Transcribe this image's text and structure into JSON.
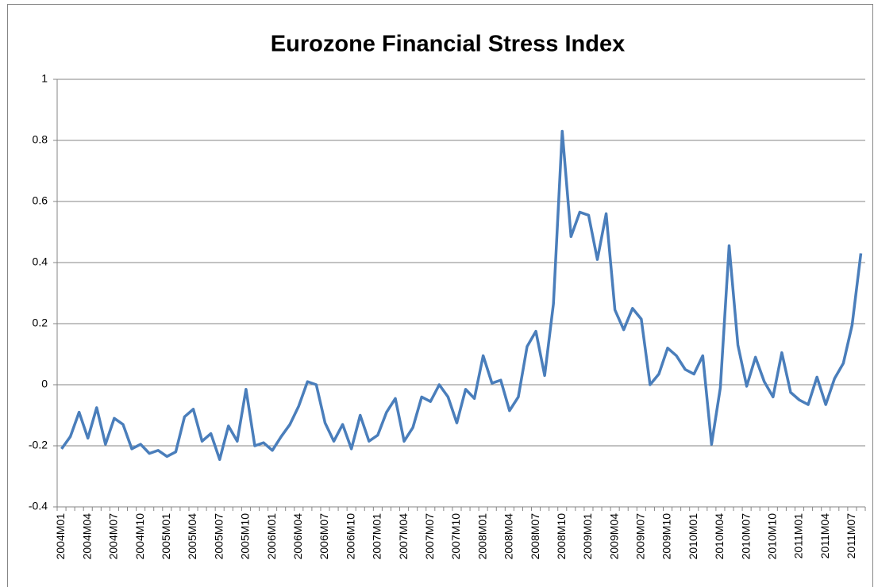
{
  "chart_data": {
    "type": "line",
    "title": "Eurozone Financial Stress Index",
    "categories": [
      "2004M01",
      null,
      null,
      "2004M04",
      null,
      null,
      "2004M07",
      null,
      null,
      "2004M10",
      null,
      null,
      "2005M01",
      null,
      null,
      "2005M04",
      null,
      null,
      "2005M07",
      null,
      null,
      "2005M10",
      null,
      null,
      "2006M01",
      null,
      null,
      "2006M04",
      null,
      null,
      "2006M07",
      null,
      null,
      "2006M10",
      null,
      null,
      "2007M01",
      null,
      null,
      "2007M04",
      null,
      null,
      "2007M07",
      null,
      null,
      "2007M10",
      null,
      null,
      "2008M01",
      null,
      null,
      "2008M04",
      null,
      null,
      "2008M07",
      null,
      null,
      "2008M10",
      null,
      null,
      "2009M01",
      null,
      null,
      "2009M04",
      null,
      null,
      "2009M07",
      null,
      null,
      "2009M10",
      null,
      null,
      "2010M01",
      null,
      null,
      "2010M04",
      null,
      null,
      "2010M07",
      null,
      null,
      "2010M10",
      null,
      null,
      "2011M01",
      null,
      null,
      "2011M04",
      null,
      null,
      "2011M07",
      null
    ],
    "series": [
      {
        "name": "Eurozone Financial Stress Index",
        "color": "#4a7ebb",
        "values": [
          -0.21,
          -0.17,
          -0.09,
          -0.175,
          -0.075,
          -0.195,
          -0.11,
          -0.13,
          -0.21,
          -0.195,
          -0.225,
          -0.215,
          -0.235,
          -0.22,
          -0.105,
          -0.08,
          -0.185,
          -0.16,
          -0.245,
          -0.135,
          -0.185,
          -0.015,
          -0.2,
          -0.19,
          -0.215,
          -0.17,
          -0.13,
          -0.07,
          0.01,
          0.0,
          -0.125,
          -0.185,
          -0.13,
          -0.21,
          -0.1,
          -0.185,
          -0.165,
          -0.09,
          -0.045,
          -0.185,
          -0.14,
          -0.04,
          -0.055,
          0.0,
          -0.04,
          -0.125,
          -0.015,
          -0.045,
          0.095,
          0.005,
          0.015,
          -0.085,
          -0.04,
          0.125,
          0.175,
          0.03,
          0.265,
          0.83,
          0.485,
          0.565,
          0.555,
          0.41,
          0.56,
          0.245,
          0.18,
          0.25,
          0.215,
          0.0,
          0.035,
          0.12,
          0.095,
          0.05,
          0.035,
          0.095,
          -0.195,
          -0.01,
          0.455,
          0.13,
          -0.005,
          0.09,
          0.01,
          -0.04,
          0.105,
          -0.025,
          -0.05,
          -0.065,
          0.025,
          -0.065,
          0.02,
          0.07,
          0.195,
          0.43
        ]
      }
    ],
    "ylim": [
      -0.4,
      1
    ],
    "yticks": [
      -0.4,
      -0.2,
      0,
      0.2,
      0.4,
      0.6,
      0.8,
      1
    ],
    "grid": true
  }
}
